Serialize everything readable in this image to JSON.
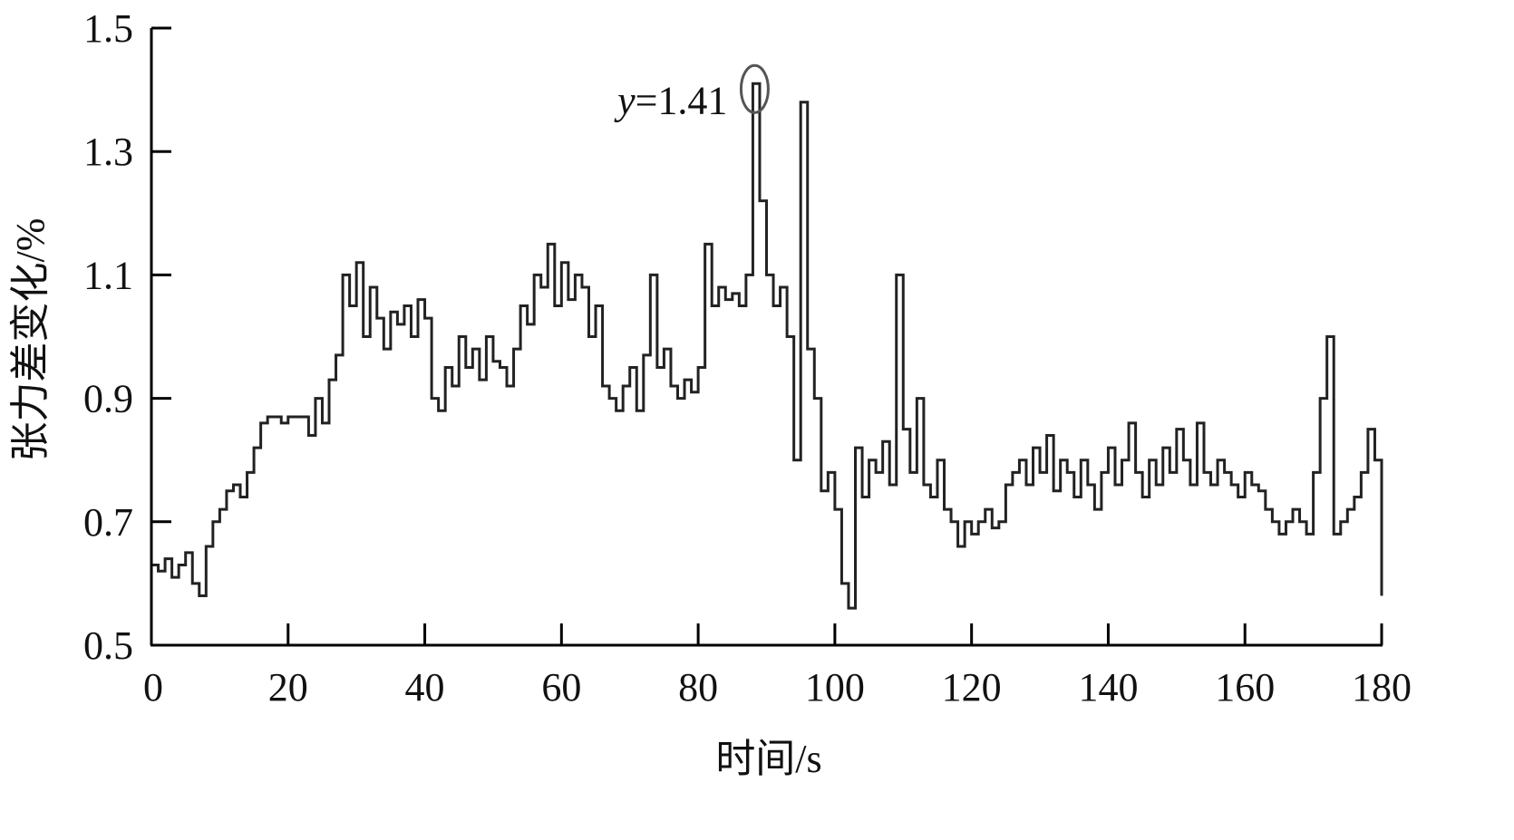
{
  "chart_data": {
    "type": "line",
    "title": "",
    "xlabel": "时间/s",
    "ylabel": "张力差变化/%",
    "xlim": [
      0,
      180
    ],
    "ylim": [
      0.5,
      1.5
    ],
    "xticks": [
      "0",
      "20",
      "40",
      "60",
      "80",
      "100",
      "120",
      "140",
      "160",
      "180"
    ],
    "yticks": [
      "0.5",
      "0.7",
      "0.9",
      "1.1",
      "1.3",
      "1.5"
    ],
    "grid": false,
    "line_color": "#222222",
    "annotation": {
      "text_var": "y",
      "text_value": "=1.41",
      "x": 88,
      "y": 1.41,
      "marker": "ellipse",
      "marker_color": "#555555"
    },
    "series": [
      {
        "x": [
          0,
          1,
          2,
          3,
          4,
          5,
          6,
          7,
          8,
          9,
          10,
          11,
          12,
          13,
          14,
          15,
          16,
          17,
          18,
          19,
          20,
          21,
          22,
          23,
          24,
          25,
          26,
          27,
          28,
          29,
          30,
          31,
          32,
          33,
          34,
          35,
          36,
          37,
          38,
          39,
          40,
          41,
          42,
          43,
          44,
          45,
          46,
          47,
          48,
          49,
          50,
          51,
          52,
          53,
          54,
          55,
          56,
          57,
          58,
          59,
          60,
          61,
          62,
          63,
          64,
          65,
          66,
          67,
          68,
          69,
          70,
          71,
          72,
          73,
          74,
          75,
          76,
          77,
          78,
          79,
          80,
          81,
          82,
          83,
          84,
          85,
          86,
          87,
          88,
          89,
          90,
          91,
          92,
          93,
          94,
          95,
          96,
          97,
          98,
          99,
          100,
          101,
          102,
          103,
          104,
          105,
          106,
          107,
          108,
          109,
          110,
          111,
          112,
          113,
          114,
          115,
          116,
          117,
          118,
          119,
          120,
          121,
          122,
          123,
          124,
          125,
          126,
          127,
          128,
          129,
          130,
          131,
          132,
          133,
          134,
          135,
          136,
          137,
          138,
          139,
          140,
          141,
          142,
          143,
          144,
          145,
          146,
          147,
          148,
          149,
          150,
          151,
          152,
          153,
          154,
          155,
          156,
          157,
          158,
          159,
          160,
          161,
          162,
          163,
          164,
          165,
          166,
          167,
          168,
          169,
          170,
          171,
          172,
          173,
          174,
          175,
          176,
          177,
          178,
          179,
          180
        ],
        "values": [
          0.63,
          0.62,
          0.64,
          0.61,
          0.63,
          0.65,
          0.6,
          0.58,
          0.66,
          0.7,
          0.72,
          0.75,
          0.76,
          0.74,
          0.78,
          0.82,
          0.86,
          0.87,
          0.87,
          0.86,
          0.87,
          0.87,
          0.87,
          0.84,
          0.9,
          0.86,
          0.93,
          0.97,
          1.1,
          1.05,
          1.12,
          1.0,
          1.08,
          1.03,
          0.98,
          1.04,
          1.02,
          1.05,
          1.0,
          1.06,
          1.03,
          0.9,
          0.88,
          0.95,
          0.92,
          1.0,
          0.95,
          0.98,
          0.93,
          1.0,
          0.96,
          0.95,
          0.92,
          0.98,
          1.05,
          1.02,
          1.1,
          1.08,
          1.15,
          1.05,
          1.12,
          1.06,
          1.1,
          1.08,
          1.0,
          1.05,
          0.92,
          0.9,
          0.88,
          0.92,
          0.95,
          0.88,
          0.97,
          1.1,
          0.95,
          0.98,
          0.92,
          0.9,
          0.93,
          0.91,
          0.95,
          1.15,
          1.05,
          1.08,
          1.06,
          1.07,
          1.05,
          1.1,
          1.41,
          1.22,
          1.1,
          1.05,
          1.08,
          1.0,
          0.8,
          1.38,
          0.98,
          0.9,
          0.75,
          0.78,
          0.72,
          0.6,
          0.56,
          0.82,
          0.74,
          0.8,
          0.78,
          0.83,
          0.76,
          1.1,
          0.85,
          0.78,
          0.9,
          0.76,
          0.74,
          0.8,
          0.72,
          0.7,
          0.66,
          0.7,
          0.68,
          0.7,
          0.72,
          0.69,
          0.7,
          0.76,
          0.78,
          0.8,
          0.76,
          0.82,
          0.78,
          0.84,
          0.75,
          0.8,
          0.78,
          0.74,
          0.8,
          0.76,
          0.72,
          0.78,
          0.82,
          0.76,
          0.8,
          0.86,
          0.78,
          0.74,
          0.8,
          0.76,
          0.82,
          0.78,
          0.85,
          0.8,
          0.76,
          0.86,
          0.78,
          0.76,
          0.8,
          0.78,
          0.76,
          0.74,
          0.78,
          0.76,
          0.75,
          0.72,
          0.7,
          0.68,
          0.7,
          0.72,
          0.7,
          0.68,
          0.78,
          0.9,
          1.0,
          0.68,
          0.7,
          0.72,
          0.74,
          0.78,
          0.85,
          0.8,
          0.58
        ]
      }
    ]
  }
}
